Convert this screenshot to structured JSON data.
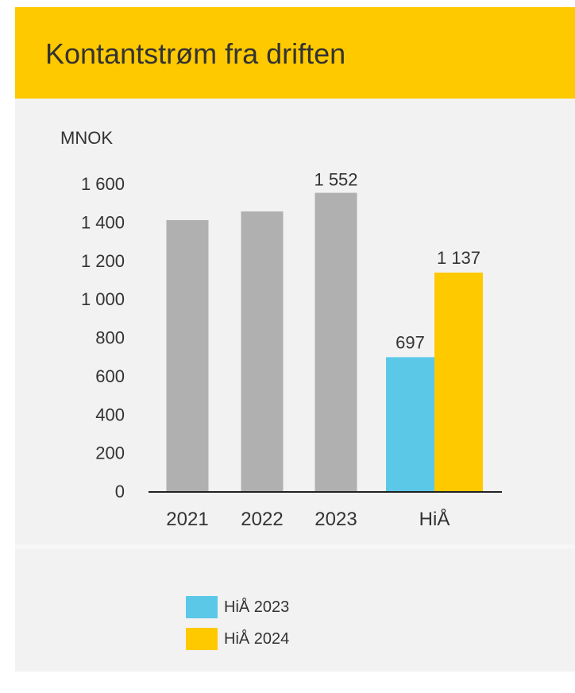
{
  "header": {
    "title": "Kontantstrøm fra driften"
  },
  "colors": {
    "header_bg": "#ffc900",
    "card_bg": "#f2f2f2",
    "bar_grey": "#b0b0b0",
    "hia_2023": "#5bc8e8",
    "hia_2024": "#ffc900",
    "text": "#333333",
    "axis": "#222222"
  },
  "chart_data": {
    "type": "bar",
    "ylabel": "MNOK",
    "ylim": [
      0,
      1600
    ],
    "yticks": [
      "0",
      "200",
      "400",
      "600",
      "800",
      "1 000",
      "1 200",
      "1 400",
      "1 600"
    ],
    "grid": false,
    "categories": [
      "2021",
      "2022",
      "2023",
      "HiÅ"
    ],
    "annual": [
      {
        "category": "2021",
        "value": 1410,
        "label": ""
      },
      {
        "category": "2022",
        "value": 1455,
        "label": ""
      },
      {
        "category": "2023",
        "value": 1552,
        "label": "1 552"
      }
    ],
    "hia": [
      {
        "series": "HiÅ 2023",
        "value": 697,
        "label": "697",
        "color": "#5bc8e8"
      },
      {
        "series": "HiÅ 2024",
        "value": 1137,
        "label": "1 137",
        "color": "#ffc900"
      }
    ],
    "legend": {
      "position": "bottom",
      "items": [
        {
          "label": "HiÅ 2023",
          "color": "#5bc8e8"
        },
        {
          "label": "HiÅ 2024",
          "color": "#ffc900"
        }
      ]
    }
  }
}
